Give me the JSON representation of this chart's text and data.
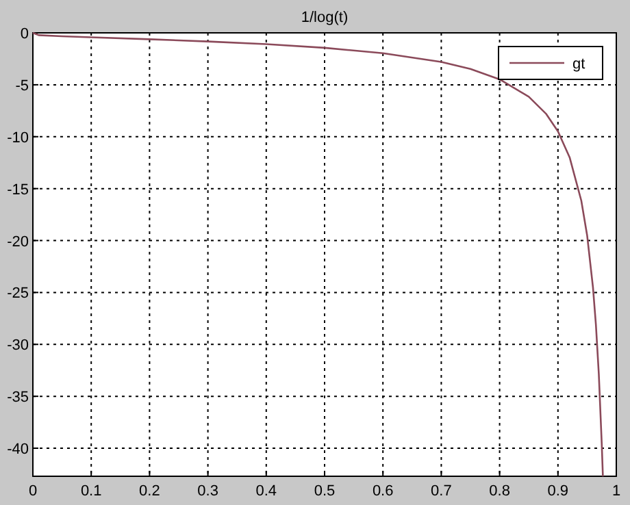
{
  "chart_data": {
    "type": "line",
    "title": "1/log(t)",
    "x": [
      0,
      0.01,
      0.05,
      0.1,
      0.2,
      0.3,
      0.4,
      0.5,
      0.6,
      0.7,
      0.75,
      0.8,
      0.85,
      0.88,
      0.9,
      0.92,
      0.94,
      0.95,
      0.96,
      0.965,
      0.97,
      0.975,
      0.977
    ],
    "series": [
      {
        "name": "gt",
        "color": "#8b4a5a",
        "values": [
          0,
          -0.22,
          -0.33,
          -0.43,
          -0.62,
          -0.83,
          -1.09,
          -1.44,
          -1.96,
          -2.8,
          -3.48,
          -4.48,
          -6.15,
          -7.82,
          -9.49,
          -11.99,
          -16.16,
          -19.5,
          -24.5,
          -28.07,
          -32.83,
          -39.5,
          -42.7
        ]
      }
    ],
    "xlim": [
      0,
      1
    ],
    "xticks": [
      0,
      0.1,
      0.2,
      0.3,
      0.4,
      0.5,
      0.6,
      0.7,
      0.8,
      0.9,
      1
    ],
    "ylim": [
      -42.7,
      0
    ],
    "yticks": [
      0,
      -5,
      -10,
      -15,
      -20,
      -25,
      -30,
      -35,
      -40
    ],
    "grid": true,
    "legend": "top right",
    "line_style": "solid",
    "marker": "none"
  }
}
